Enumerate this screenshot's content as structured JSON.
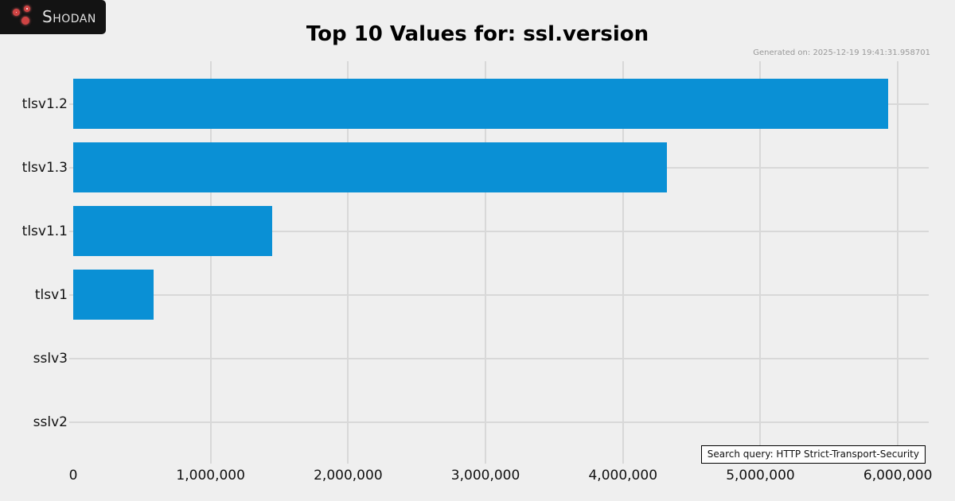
{
  "brand": {
    "name": "Shodan"
  },
  "header": {
    "generated_on": "Generated on: 2025-12-19 19:41:31.958701"
  },
  "chart_data": {
    "type": "bar",
    "orientation": "horizontal",
    "title": "Top 10 Values for: ssl.version",
    "categories": [
      "tlsv1.2",
      "tlsv1.3",
      "tlsv1.1",
      "tlsv1",
      "sslv3",
      "sslv2"
    ],
    "values": [
      5930000,
      4320000,
      1450000,
      585000,
      0,
      0
    ],
    "xticks": [
      0,
      1000000,
      2000000,
      3000000,
      4000000,
      5000000,
      6000000
    ],
    "xtick_labels": [
      "0",
      "1,000,000",
      "2,000,000",
      "3,000,000",
      "4,000,000",
      "5,000,000",
      "6,000,000"
    ],
    "xlim": [
      0,
      6225000
    ],
    "xlabel": "",
    "ylabel": "",
    "grid": true,
    "legend_position": "lower right",
    "bar_color": "#0a90d5",
    "background_color": "#efefef",
    "annotation": "Search query: HTTP Strict-Transport-Security"
  }
}
